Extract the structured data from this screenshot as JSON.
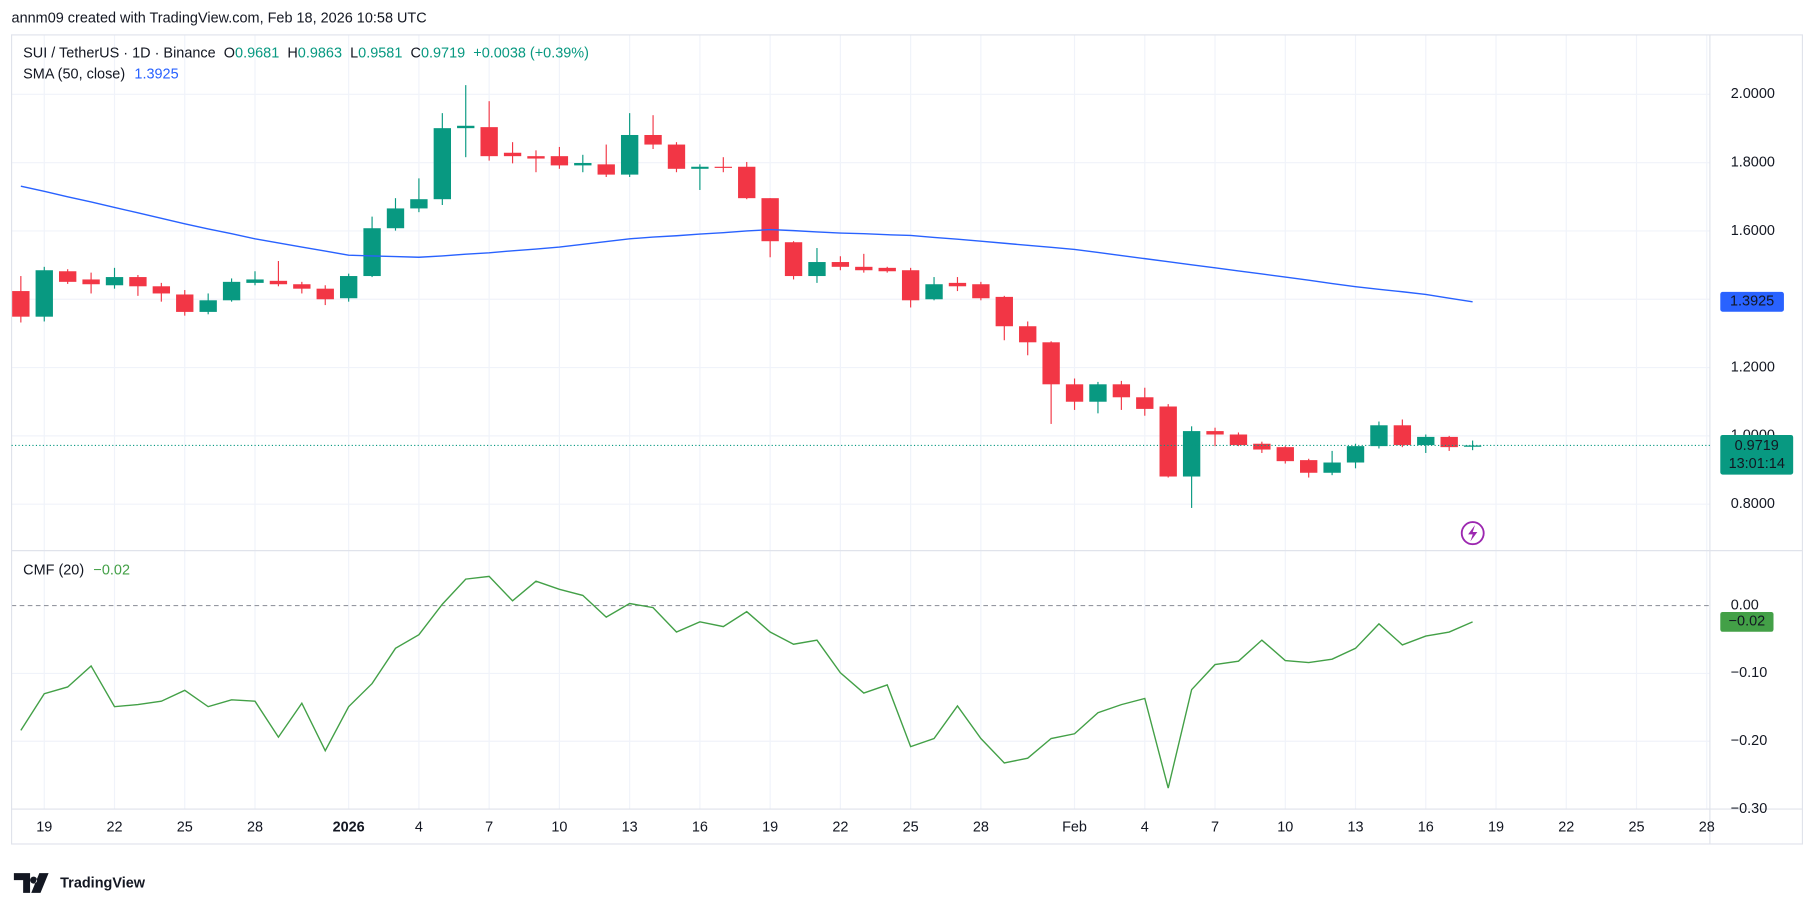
{
  "header": "annm09 created with TradingView.com, Feb 18, 2026 10:58 UTC",
  "brand": "TradingView",
  "chart_data": [
    {
      "type": "candlestick",
      "title": "SUI / TetherUS · 1D · Binance",
      "ohlc_labels": [
        "O",
        "H",
        "L",
        "C"
      ],
      "change": "+0.0038 (+0.39%)",
      "countdown": "13:01:14",
      "up_color": "#089981",
      "down_color": "#f23645",
      "categories": [
        null,
        "19",
        null,
        null,
        "22",
        null,
        null,
        "25",
        null,
        null,
        "28",
        null,
        null,
        null,
        "2026",
        null,
        null,
        "4",
        null,
        null,
        "7",
        null,
        null,
        "10",
        null,
        null,
        "13",
        null,
        null,
        "16",
        null,
        null,
        "19",
        null,
        null,
        "22",
        null,
        null,
        "25",
        null,
        null,
        "28",
        null,
        null,
        null,
        "Feb",
        null,
        null,
        "4",
        null,
        null,
        "7",
        null,
        null,
        "10",
        null,
        null,
        "13",
        null,
        null,
        "16",
        null,
        null,
        "19",
        null,
        null,
        "22",
        null,
        null,
        "25",
        null,
        null,
        "28"
      ],
      "open": [
        1.424,
        1.349,
        1.482,
        1.458,
        1.441,
        1.465,
        1.438,
        1.414,
        1.363,
        1.397,
        1.448,
        1.454,
        1.444,
        1.431,
        1.403,
        1.468,
        1.608,
        1.666,
        1.693,
        1.901,
        1.904,
        1.829,
        1.819,
        1.819,
        1.792,
        1.795,
        1.765,
        1.881,
        1.853,
        1.782,
        1.788,
        1.788,
        1.696,
        1.567,
        1.468,
        1.509,
        1.495,
        1.492,
        1.485,
        1.4,
        1.448,
        1.444,
        1.407,
        1.321,
        1.274,
        1.151,
        1.1,
        1.151,
        1.113,
        1.086,
        0.881,
        1.014,
        1.004,
        0.977,
        0.967,
        0.929,
        0.892,
        0.922,
        0.97,
        1.031,
        0.973,
        0.997,
        0.9681,
        null,
        null,
        null,
        null,
        null,
        null,
        null,
        null,
        null,
        null
      ],
      "high": [
        1.468,
        1.495,
        1.488,
        1.478,
        1.492,
        1.471,
        1.448,
        1.427,
        1.417,
        1.461,
        1.482,
        1.512,
        1.451,
        1.441,
        1.475,
        1.642,
        1.696,
        1.754,
        1.945,
        2.027,
        1.98,
        1.86,
        1.836,
        1.846,
        1.823,
        1.853,
        1.945,
        1.939,
        1.86,
        1.795,
        1.816,
        1.802,
        1.696,
        1.57,
        1.55,
        1.526,
        1.533,
        1.495,
        1.492,
        1.465,
        1.465,
        1.451,
        1.41,
        1.335,
        1.277,
        1.168,
        1.158,
        1.161,
        1.141,
        1.093,
        1.028,
        1.024,
        1.01,
        0.983,
        0.97,
        0.933,
        0.956,
        0.977,
        1.042,
        1.048,
        1.004,
        1.0,
        0.9863,
        null,
        null,
        null,
        null,
        null,
        null,
        null,
        null,
        null,
        null
      ],
      "low": [
        1.332,
        1.335,
        1.445,
        1.417,
        1.431,
        1.41,
        1.393,
        1.352,
        1.356,
        1.393,
        1.441,
        1.438,
        1.417,
        1.383,
        1.393,
        1.465,
        1.601,
        1.655,
        1.676,
        1.816,
        1.806,
        1.798,
        1.772,
        1.782,
        1.772,
        1.758,
        1.758,
        1.84,
        1.772,
        1.72,
        1.772,
        1.693,
        1.523,
        1.458,
        1.448,
        1.485,
        1.478,
        1.478,
        1.376,
        1.397,
        1.424,
        1.397,
        1.28,
        1.236,
        1.035,
        1.076,
        1.066,
        1.076,
        1.059,
        0.878,
        0.789,
        0.97,
        0.97,
        0.95,
        0.919,
        0.878,
        0.885,
        0.905,
        0.963,
        0.967,
        0.95,
        0.956,
        0.9581,
        null,
        null,
        null,
        null,
        null,
        null,
        null,
        null,
        null,
        null
      ],
      "close": [
        1.349,
        1.485,
        1.451,
        1.444,
        1.465,
        1.438,
        1.417,
        1.363,
        1.397,
        1.451,
        1.458,
        1.444,
        1.431,
        1.4,
        1.468,
        1.608,
        1.666,
        1.693,
        1.901,
        1.908,
        1.819,
        1.819,
        1.812,
        1.792,
        1.799,
        1.765,
        1.881,
        1.853,
        1.782,
        1.788,
        1.785,
        1.696,
        1.57,
        1.468,
        1.509,
        1.495,
        1.485,
        1.482,
        1.397,
        1.444,
        1.438,
        1.403,
        1.321,
        1.274,
        1.151,
        1.1,
        1.151,
        1.113,
        1.079,
        0.881,
        1.014,
        1.004,
        0.973,
        0.96,
        0.926,
        0.892,
        0.922,
        0.97,
        1.031,
        0.973,
        0.997,
        0.967,
        0.9719,
        null,
        null,
        null,
        null,
        null,
        null,
        null,
        null,
        null,
        null
      ],
      "sma": {
        "name": "SMA (50, close)",
        "color": "#2962ff",
        "values": [
          1.731,
          1.716,
          1.7,
          1.685,
          1.669,
          1.653,
          1.637,
          1.621,
          1.606,
          1.592,
          1.577,
          1.565,
          1.553,
          1.541,
          1.529,
          1.527,
          1.525,
          1.523,
          1.527,
          1.532,
          1.536,
          1.542,
          1.547,
          1.553,
          1.561,
          1.569,
          1.577,
          1.582,
          1.586,
          1.591,
          1.595,
          1.6,
          1.604,
          1.601,
          1.597,
          1.594,
          1.592,
          1.589,
          1.587,
          1.581,
          1.576,
          1.57,
          1.564,
          1.558,
          1.552,
          1.546,
          1.537,
          1.528,
          1.519,
          1.51,
          1.501,
          1.492,
          1.483,
          1.474,
          1.465,
          1.456,
          1.446,
          1.437,
          1.429,
          1.422,
          1.414,
          1.403,
          1.3925,
          null,
          null,
          null,
          null,
          null,
          null,
          null,
          null,
          null,
          null
        ]
      },
      "ylim": [
        0.664,
        2.174
      ],
      "yticks": [
        {
          "value": 0.8,
          "label": "0.8000"
        },
        {
          "value": 1.0,
          "label": "1.0000"
        },
        {
          "value": 1.2,
          "label": "1.2000"
        },
        {
          "value": 1.4,
          "label": "1.4000"
        },
        {
          "value": 1.6,
          "label": "1.6000"
        },
        {
          "value": 1.8,
          "label": "1.8000"
        },
        {
          "value": 2.0,
          "label": "2.0000"
        }
      ],
      "grid": true
    },
    {
      "type": "line",
      "name": "CMF (20)",
      "color": "#43a047",
      "values": [
        -0.184,
        -0.13,
        -0.12,
        -0.089,
        -0.149,
        -0.146,
        -0.141,
        -0.125,
        -0.149,
        -0.139,
        -0.141,
        -0.194,
        -0.144,
        -0.214,
        -0.149,
        -0.115,
        -0.063,
        -0.043,
        0.002,
        0.039,
        0.043,
        0.007,
        0.036,
        0.024,
        0.015,
        -0.017,
        0.003,
        -0.003,
        -0.039,
        -0.024,
        -0.031,
        -0.009,
        -0.039,
        -0.057,
        -0.051,
        -0.099,
        -0.129,
        -0.117,
        -0.208,
        -0.196,
        -0.148,
        -0.196,
        -0.232,
        -0.225,
        -0.196,
        -0.189,
        -0.158,
        -0.146,
        -0.137,
        -0.269,
        -0.124,
        -0.087,
        -0.082,
        -0.051,
        -0.081,
        -0.084,
        -0.079,
        -0.063,
        -0.027,
        -0.058,
        -0.045,
        -0.039,
        -0.024,
        null,
        null,
        null,
        null,
        null,
        null,
        null,
        null,
        null,
        null
      ],
      "value_labels": [
        null,
        null,
        null,
        null,
        null,
        null,
        null,
        null,
        null,
        null,
        null,
        null,
        null,
        null,
        null,
        null,
        null,
        null,
        null,
        null,
        null,
        null,
        null,
        null,
        null,
        null,
        null,
        null,
        null,
        null,
        null,
        null,
        null,
        null,
        null,
        null,
        null,
        null,
        null,
        null,
        null,
        null,
        null,
        null,
        null,
        null,
        null,
        null,
        null,
        null,
        null,
        null,
        null,
        null,
        null,
        null,
        null,
        null,
        null,
        null,
        null,
        null,
        "−0.02",
        null,
        null,
        null,
        null,
        null,
        null,
        null,
        null,
        null,
        null
      ],
      "ylim": [
        -0.3,
        0.081
      ],
      "yticks": [
        {
          "value": 0,
          "label": "0.00"
        },
        {
          "value": -0.1,
          "label": "−0.10"
        },
        {
          "value": -0.2,
          "label": "−0.20"
        },
        {
          "value": -0.3,
          "label": "−0.30"
        }
      ],
      "grid": true
    }
  ]
}
